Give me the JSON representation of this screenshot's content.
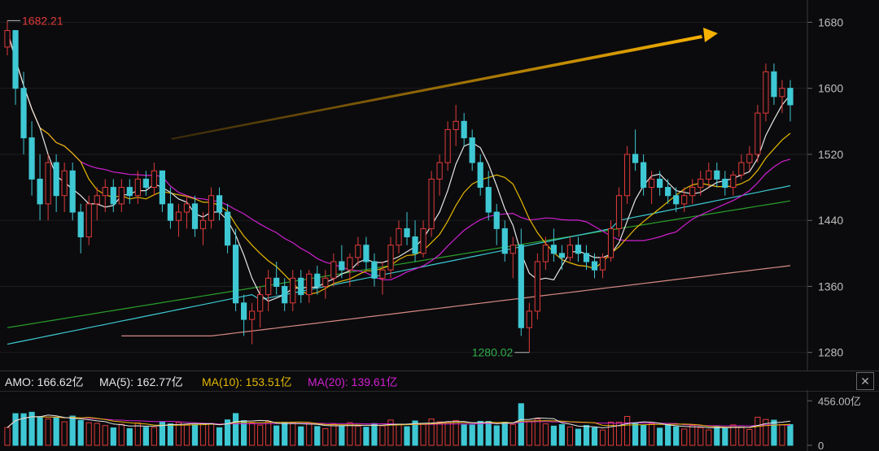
{
  "chart_data": {
    "type": "candlestick",
    "price_axis": {
      "ticks": [
        1280,
        1360,
        1440,
        1520,
        1600,
        1680
      ],
      "tick_labels": [
        "1280",
        "1360",
        "1440",
        "1520",
        "1600",
        "1680"
      ]
    },
    "annotations": {
      "high_label": "1682.21",
      "low_label": "1280.02",
      "trend_arrow": "upward"
    },
    "volume_axis": {
      "ticks": [
        0,
        456
      ],
      "tick_labels": [
        "0",
        "456.00亿"
      ]
    },
    "amo_bar": {
      "amo": "AMO: 166.62亿",
      "ma5": "MA(5): 162.77亿",
      "ma10": "MA(10): 153.51亿",
      "ma20": "MA(20): 139.61亿"
    },
    "series": [
      {
        "name": "MA(5)",
        "color": "#e6e6e6"
      },
      {
        "name": "MA(10)",
        "color": "#e5b800"
      },
      {
        "name": "MA(20)",
        "color": "#d020d0"
      },
      {
        "name": "",
        "color": "#2a9d2a"
      },
      {
        "name": "",
        "color": "#3cc8d2"
      },
      {
        "name": "",
        "color": "#d78a84"
      }
    ],
    "candles": [
      [
        1650,
        1682,
        1640,
        1670
      ],
      [
        1670,
        1670,
        1580,
        1600
      ],
      [
        1600,
        1620,
        1520,
        1540
      ],
      [
        1540,
        1560,
        1470,
        1490
      ],
      [
        1490,
        1520,
        1440,
        1460
      ],
      [
        1460,
        1520,
        1440,
        1510
      ],
      [
        1510,
        1520,
        1450,
        1470
      ],
      [
        1470,
        1510,
        1450,
        1500
      ],
      [
        1500,
        1510,
        1440,
        1450
      ],
      [
        1450,
        1460,
        1400,
        1420
      ],
      [
        1420,
        1470,
        1410,
        1460
      ],
      [
        1460,
        1480,
        1440,
        1470
      ],
      [
        1470,
        1490,
        1450,
        1480
      ],
      [
        1480,
        1490,
        1450,
        1460
      ],
      [
        1460,
        1490,
        1450,
        1480
      ],
      [
        1480,
        1490,
        1460,
        1470
      ],
      [
        1470,
        1500,
        1460,
        1490
      ],
      [
        1490,
        1500,
        1470,
        1480
      ],
      [
        1480,
        1510,
        1470,
        1500
      ],
      [
        1500,
        1500,
        1450,
        1460
      ],
      [
        1460,
        1480,
        1430,
        1440
      ],
      [
        1440,
        1460,
        1420,
        1450
      ],
      [
        1450,
        1470,
        1430,
        1460
      ],
      [
        1460,
        1470,
        1420,
        1430
      ],
      [
        1430,
        1450,
        1410,
        1440
      ],
      [
        1440,
        1480,
        1430,
        1470
      ],
      [
        1470,
        1480,
        1440,
        1450
      ],
      [
        1450,
        1460,
        1400,
        1410
      ],
      [
        1410,
        1430,
        1330,
        1340
      ],
      [
        1340,
        1350,
        1300,
        1320
      ],
      [
        1320,
        1340,
        1290,
        1330
      ],
      [
        1330,
        1360,
        1310,
        1350
      ],
      [
        1350,
        1380,
        1330,
        1370
      ],
      [
        1370,
        1390,
        1350,
        1360
      ],
      [
        1360,
        1370,
        1330,
        1340
      ],
      [
        1340,
        1380,
        1330,
        1370
      ],
      [
        1370,
        1380,
        1340,
        1350
      ],
      [
        1350,
        1380,
        1340,
        1375
      ],
      [
        1375,
        1385,
        1350,
        1360
      ],
      [
        1360,
        1380,
        1345,
        1370
      ],
      [
        1370,
        1400,
        1360,
        1390
      ],
      [
        1390,
        1410,
        1370,
        1380
      ],
      [
        1380,
        1400,
        1360,
        1395
      ],
      [
        1395,
        1420,
        1385,
        1410
      ],
      [
        1410,
        1420,
        1380,
        1390
      ],
      [
        1390,
        1400,
        1360,
        1370
      ],
      [
        1370,
        1390,
        1350,
        1380
      ],
      [
        1380,
        1420,
        1370,
        1410
      ],
      [
        1410,
        1440,
        1400,
        1430
      ],
      [
        1430,
        1450,
        1410,
        1420
      ],
      [
        1420,
        1440,
        1390,
        1400
      ],
      [
        1400,
        1440,
        1395,
        1430
      ],
      [
        1430,
        1500,
        1420,
        1490
      ],
      [
        1490,
        1520,
        1470,
        1510
      ],
      [
        1510,
        1560,
        1500,
        1550
      ],
      [
        1550,
        1580,
        1530,
        1560
      ],
      [
        1560,
        1570,
        1530,
        1540
      ],
      [
        1540,
        1550,
        1500,
        1510
      ],
      [
        1510,
        1520,
        1470,
        1480
      ],
      [
        1480,
        1500,
        1440,
        1450
      ],
      [
        1450,
        1460,
        1410,
        1430
      ],
      [
        1430,
        1440,
        1390,
        1400
      ],
      [
        1400,
        1420,
        1370,
        1410
      ],
      [
        1410,
        1430,
        1300,
        1310
      ],
      [
        1310,
        1340,
        1280,
        1330
      ],
      [
        1330,
        1400,
        1320,
        1390
      ],
      [
        1390,
        1420,
        1380,
        1410
      ],
      [
        1410,
        1430,
        1390,
        1400
      ],
      [
        1400,
        1410,
        1380,
        1395
      ],
      [
        1395,
        1420,
        1390,
        1410
      ],
      [
        1410,
        1420,
        1390,
        1400
      ],
      [
        1400,
        1410,
        1380,
        1390
      ],
      [
        1390,
        1400,
        1370,
        1380
      ],
      [
        1380,
        1400,
        1370,
        1395
      ],
      [
        1395,
        1440,
        1390,
        1430
      ],
      [
        1430,
        1480,
        1420,
        1470
      ],
      [
        1470,
        1530,
        1460,
        1520
      ],
      [
        1520,
        1550,
        1500,
        1510
      ],
      [
        1510,
        1520,
        1470,
        1480
      ],
      [
        1480,
        1500,
        1460,
        1490
      ],
      [
        1490,
        1500,
        1470,
        1480
      ],
      [
        1480,
        1490,
        1460,
        1470
      ],
      [
        1470,
        1480,
        1450,
        1460
      ],
      [
        1460,
        1480,
        1450,
        1470
      ],
      [
        1470,
        1490,
        1460,
        1480
      ],
      [
        1480,
        1500,
        1470,
        1490
      ],
      [
        1490,
        1510,
        1480,
        1500
      ],
      [
        1500,
        1510,
        1480,
        1490
      ],
      [
        1490,
        1500,
        1470,
        1480
      ],
      [
        1480,
        1500,
        1470,
        1495
      ],
      [
        1495,
        1520,
        1490,
        1510
      ],
      [
        1510,
        1530,
        1500,
        1520
      ],
      [
        1520,
        1580,
        1510,
        1570
      ],
      [
        1570,
        1630,
        1560,
        1620
      ],
      [
        1620,
        1630,
        1580,
        1590
      ],
      [
        1590,
        1610,
        1570,
        1600
      ],
      [
        1600,
        1610,
        1560,
        1580
      ]
    ]
  }
}
